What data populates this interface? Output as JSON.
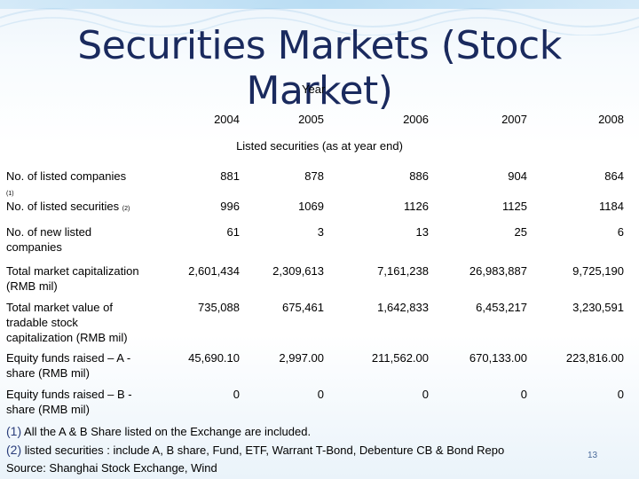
{
  "slide": {
    "title": "Securities Markets (Stock Market)",
    "year_label": "Year",
    "years": [
      "2004",
      "2005",
      "2006",
      "2007",
      "2008"
    ],
    "section_caption": "Listed securities (as at year end)",
    "rows": [
      {
        "label": "No. of listed companies",
        "note": "(1)",
        "values": [
          "881",
          "878",
          "886",
          "904",
          "864"
        ]
      },
      {
        "label": "No. of listed securities",
        "note": "(2)",
        "values": [
          "996",
          "1069",
          "1126",
          "1125",
          "1184"
        ]
      },
      {
        "label": "No. of new listed companies",
        "note": "",
        "values": [
          "61",
          "3",
          "13",
          "25",
          "6"
        ]
      },
      {
        "label": "Total market capitalization (RMB mil)",
        "note": "",
        "values": [
          "2,601,434",
          "2,309,613",
          "7,161,238",
          "26,983,887",
          "9,725,190"
        ]
      },
      {
        "label": "Total market value of tradable stock capitalization (RMB mil)",
        "note": "",
        "values": [
          "735,088",
          "675,461",
          "1,642,833",
          "6,453,217",
          "3,230,591"
        ]
      },
      {
        "label": "Equity funds raised – A -share (RMB mil)",
        "note": "",
        "values": [
          "45,690.10",
          "2,997.00",
          "211,562.00",
          "670,133.00",
          "223,816.00"
        ]
      },
      {
        "label": "Equity funds raised – B -share (RMB mil)",
        "note": "",
        "values": [
          "0",
          "0",
          "0",
          "0",
          "0"
        ]
      }
    ],
    "notes": [
      {
        "num": "(1)",
        "text": "All the A & B Share listed on the Exchange are included."
      },
      {
        "num": "(2)",
        "text": "listed securities : include A, B share, Fund, ETF, Warrant T-Bond, Debenture CB & Bond Repo"
      }
    ],
    "source": "Source: Shanghai Stock Exchange, Wind",
    "page_number": "13"
  }
}
